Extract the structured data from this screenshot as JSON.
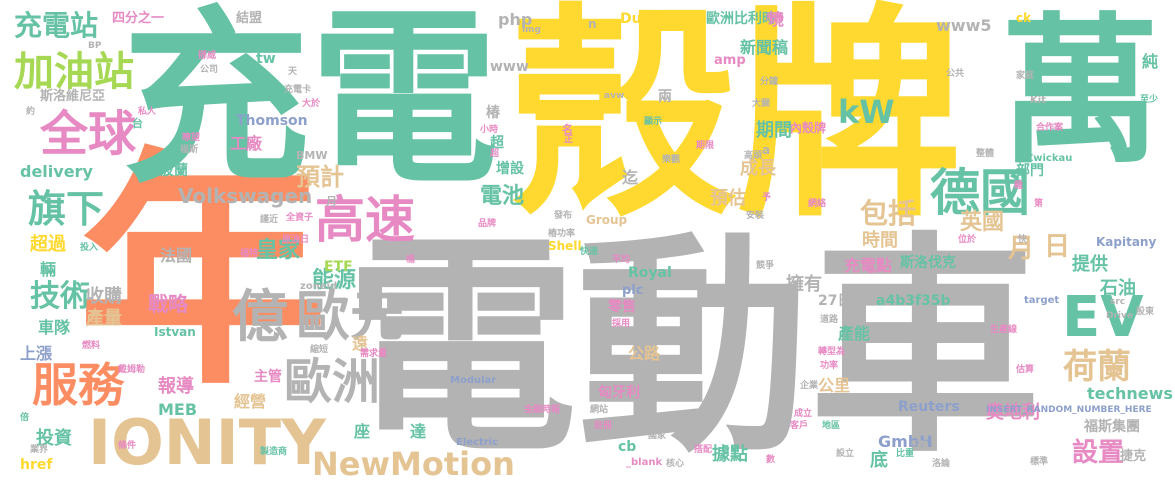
{
  "palette": {
    "green": "#66c2a5",
    "orange": "#fc8d62",
    "blue": "#8da0cb",
    "pink": "#e78ac3",
    "lime": "#a6d854",
    "yellow": "#ffd92f",
    "tan": "#e5c494",
    "gray": "#b3b3b3"
  },
  "words": [
    {
      "t": "年",
      "c": "orange"
    },
    {
      "t": "電動車",
      "c": "gray"
    },
    {
      "t": "充電",
      "c": "green"
    },
    {
      "t": "殼牌",
      "c": "yellow"
    },
    {
      "t": "萬",
      "c": "green"
    },
    {
      "t": "IONITY",
      "c": "tan"
    },
    {
      "t": "服務",
      "c": "orange"
    },
    {
      "t": "全球",
      "c": "pink"
    },
    {
      "t": "加油站",
      "c": "lime"
    },
    {
      "t": "充電站",
      "c": "green"
    },
    {
      "t": "旗下",
      "c": "green"
    },
    {
      "t": "技術",
      "c": "green"
    },
    {
      "t": "億",
      "c": "gray"
    },
    {
      "t": "歐元",
      "c": "gray"
    },
    {
      "t": "歐洲",
      "c": "gray"
    },
    {
      "t": "高速",
      "c": "pink"
    },
    {
      "t": "德國",
      "c": "green"
    },
    {
      "t": "EV",
      "c": "green"
    },
    {
      "t": "荷蘭",
      "c": "tan"
    },
    {
      "t": "NewMotion",
      "c": "tan"
    },
    {
      "t": "kW",
      "c": "green"
    },
    {
      "t": "包括",
      "c": "tan"
    },
    {
      "t": "英國",
      "c": "tan"
    },
    {
      "t": "月",
      "c": "tan"
    },
    {
      "t": "日",
      "c": "tan"
    },
    {
      "t": "設置",
      "c": "pink"
    },
    {
      "t": "預計",
      "c": "tan"
    },
    {
      "t": "電池",
      "c": "green"
    },
    {
      "t": "能源",
      "c": "green"
    },
    {
      "t": "皇家",
      "c": "green"
    },
    {
      "t": "石油",
      "c": "green"
    },
    {
      "t": "提供",
      "c": "green"
    },
    {
      "t": "擁有",
      "c": "gray"
    },
    {
      "t": "戰略",
      "c": "pink"
    },
    {
      "t": "收購",
      "c": "gray"
    },
    {
      "t": "產量",
      "c": "tan"
    },
    {
      "t": "車隊",
      "c": "green"
    },
    {
      "t": "上漲",
      "c": "blue"
    },
    {
      "t": "報導",
      "c": "pink"
    },
    {
      "t": "經營",
      "c": "tan"
    },
    {
      "t": "投資",
      "c": "green"
    },
    {
      "t": "座",
      "c": "green"
    },
    {
      "t": "達",
      "c": "green"
    },
    {
      "t": "奧地利",
      "c": "pink"
    },
    {
      "t": "據點",
      "c": "green"
    },
    {
      "t": "底",
      "c": "green"
    },
    {
      "t": "福斯集團",
      "c": "gray"
    },
    {
      "t": "捷克",
      "c": "gray"
    },
    {
      "t": "technews",
      "c": "green"
    },
    {
      "t": "Reuters",
      "c": "blue"
    },
    {
      "t": "GmbH",
      "c": "blue"
    },
    {
      "t": "公里",
      "c": "tan"
    },
    {
      "t": "公路",
      "c": "tan"
    },
    {
      "t": "產能",
      "c": "green"
    },
    {
      "t": "零售",
      "c": "pink"
    },
    {
      "t": "MEB",
      "c": "green"
    },
    {
      "t": "Volkswagen",
      "c": "gray"
    },
    {
      "t": "ETF",
      "c": "lime"
    },
    {
      "t": "delivery",
      "c": "green"
    },
    {
      "t": "工廠",
      "c": "pink"
    },
    {
      "t": "Thomson",
      "c": "blue"
    },
    {
      "t": "超過",
      "c": "yellow"
    },
    {
      "t": "法國",
      "c": "gray"
    },
    {
      "t": "波蘭",
      "c": "green"
    },
    {
      "t": "期間",
      "c": "green"
    },
    {
      "t": "成長",
      "c": "tan"
    },
    {
      "t": "預估",
      "c": "tan"
    },
    {
      "t": "時間",
      "c": "tan"
    },
    {
      "t": "新聞稿",
      "c": "green"
    },
    {
      "t": "歐洲比利時",
      "c": "green"
    },
    {
      "t": "Dutch",
      "c": "yellow"
    },
    {
      "t": "www5",
      "c": "gray"
    },
    {
      "t": "php",
      "c": "gray"
    },
    {
      "t": "www",
      "c": "gray"
    },
    {
      "t": "椿",
      "c": "gray"
    },
    {
      "t": "充電點",
      "c": "pink"
    },
    {
      "t": "斯洛伐克",
      "c": "green"
    },
    {
      "t": "Kapitany",
      "c": "blue"
    },
    {
      "t": "a4b3f35b",
      "c": "green"
    },
    {
      "t": "27日",
      "c": "gray"
    },
    {
      "t": "Royal",
      "c": "green"
    },
    {
      "t": "plc",
      "c": "blue"
    },
    {
      "t": "Shell",
      "c": "yellow"
    },
    {
      "t": "斯洛維尼亞",
      "c": "gray"
    },
    {
      "t": "四分之一",
      "c": "pink"
    },
    {
      "t": "結盟",
      "c": "gray"
    },
    {
      "t": "tw",
      "c": "green"
    },
    {
      "t": "href",
      "c": "yellow"
    },
    {
      "t": "輛",
      "c": "green"
    },
    {
      "t": "遠",
      "c": "tan"
    },
    {
      "t": "主管",
      "c": "pink"
    },
    {
      "t": "匈牙利",
      "c": "pink"
    },
    {
      "t": "Istvan",
      "c": "green"
    },
    {
      "t": "內殼牌",
      "c": "pink"
    },
    {
      "t": "增設",
      "c": "green"
    },
    {
      "t": "迄",
      "c": "gray"
    },
    {
      "t": "BMW",
      "c": "gray"
    },
    {
      "t": "Group",
      "c": "tan"
    },
    {
      "t": "amp",
      "c": "pink"
    },
    {
      "t": "ck",
      "c": "yellow"
    },
    {
      "t": "境",
      "c": "pink"
    },
    {
      "t": "純",
      "c": "green"
    },
    {
      "t": "部門",
      "c": "green"
    },
    {
      "t": "INSERT_RANDOM_NUMBER_HERE",
      "c": "blue"
    },
    {
      "t": "Modular",
      "c": "blue"
    },
    {
      "t": "Electric",
      "c": "blue"
    },
    {
      "t": "zoneid",
      "c": "gray"
    },
    {
      "t": "target",
      "c": "blue"
    },
    {
      "t": "_blank",
      "c": "pink"
    },
    {
      "t": "Zwickau",
      "c": "green"
    },
    {
      "t": "Kit",
      "c": "gray"
    },
    {
      "t": "Drive",
      "c": "gray"
    },
    {
      "t": "src",
      "c": "gray"
    },
    {
      "t": "cb",
      "c": "green"
    },
    {
      "t": "兩",
      "c": "gray"
    },
    {
      "t": "超",
      "c": "green"
    },
    {
      "t": "月",
      "c": "gray"
    },
    {
      "t": "a",
      "c": "gray"
    },
    {
      "t": "n",
      "c": "gray"
    },
    {
      "t": "img",
      "c": "gray"
    },
    {
      "t": "avw",
      "c": "gray"
    },
    {
      "t": "BP",
      "c": "gray"
    },
    {
      "t": "規格",
      "c": "pink"
    },
    {
      "t": "挪威",
      "c": "pink"
    },
    {
      "t": "公司",
      "c": "gray"
    },
    {
      "t": "天",
      "c": "gray"
    },
    {
      "t": "充電卡",
      "c": "gray"
    },
    {
      "t": "大於",
      "c": "pink"
    },
    {
      "t": "私人",
      "c": "pink"
    },
    {
      "t": "台",
      "c": "green"
    },
    {
      "t": "約",
      "c": "gray"
    },
    {
      "t": "瞭望",
      "c": "pink"
    },
    {
      "t": "福斯",
      "c": "gray"
    },
    {
      "t": "謹近",
      "c": "gray"
    },
    {
      "t": "全資子",
      "c": "pink"
    },
    {
      "t": "投入",
      "c": "green"
    },
    {
      "t": "福特",
      "c": "pink"
    },
    {
      "t": "原油日",
      "c": "pink"
    },
    {
      "t": "桶",
      "c": "pink"
    },
    {
      "t": "燃料",
      "c": "pink"
    },
    {
      "t": "戴姆勒",
      "c": "pink"
    },
    {
      "t": "縮短",
      "c": "gray"
    },
    {
      "t": "需求量",
      "c": "pink"
    },
    {
      "t": "倍",
      "c": "green"
    },
    {
      "t": "業界",
      "c": "gray"
    },
    {
      "t": "條件",
      "c": "pink"
    },
    {
      "t": "製造商",
      "c": "green"
    },
    {
      "t": "金融時報",
      "c": "pink"
    },
    {
      "t": "網站",
      "c": "gray"
    },
    {
      "t": "對手",
      "c": "gray"
    },
    {
      "t": "國家",
      "c": "gray"
    },
    {
      "t": "註冊",
      "c": "pink"
    },
    {
      "t": "核心",
      "c": "gray"
    },
    {
      "t": "搭配",
      "c": "pink"
    },
    {
      "t": "數",
      "c": "pink"
    },
    {
      "t": "比重",
      "c": "green"
    },
    {
      "t": "洛論",
      "c": "gray"
    },
    {
      "t": "標準",
      "c": "gray"
    },
    {
      "t": "千萬",
      "c": "gray"
    },
    {
      "t": "設立",
      "c": "gray"
    },
    {
      "t": "地區",
      "c": "green"
    },
    {
      "t": "統計",
      "c": "gray"
    },
    {
      "t": "成立",
      "c": "pink"
    },
    {
      "t": "客戶",
      "c": "pink"
    },
    {
      "t": "企業",
      "c": "gray"
    },
    {
      "t": "估算",
      "c": "pink"
    },
    {
      "t": "轉型為",
      "c": "pink"
    },
    {
      "t": "功率",
      "c": "pink"
    },
    {
      "t": "生產線",
      "c": "pink"
    },
    {
      "t": "道路",
      "c": "gray"
    },
    {
      "t": "股東",
      "c": "gray"
    },
    {
      "t": "競爭",
      "c": "gray"
    },
    {
      "t": "位於",
      "c": "pink"
    },
    {
      "t": "快",
      "c": "gray"
    },
    {
      "t": "網絡",
      "c": "pink"
    },
    {
      "t": "安裝",
      "c": "gray"
    },
    {
      "t": "予",
      "c": "pink"
    },
    {
      "t": "平均",
      "c": "pink"
    },
    {
      "t": "快速",
      "c": "green"
    },
    {
      "t": "樁功率",
      "c": "gray"
    },
    {
      "t": "發布",
      "c": "gray"
    },
    {
      "t": "品牌",
      "c": "pink"
    },
    {
      "t": "名",
      "c": "pink"
    },
    {
      "t": "顯示",
      "c": "green"
    },
    {
      "t": "小時",
      "c": "pink"
    },
    {
      "t": "樂觀",
      "c": "gray"
    },
    {
      "t": "期限",
      "c": "pink"
    },
    {
      "t": "大關",
      "c": "gray"
    },
    {
      "t": "分鐘",
      "c": "gray"
    },
    {
      "t": "公共",
      "c": "gray"
    },
    {
      "t": "家庭",
      "c": "gray"
    },
    {
      "t": "至少",
      "c": "green"
    },
    {
      "t": "合作案",
      "c": "pink"
    },
    {
      "t": "整體",
      "c": "gray"
    },
    {
      "t": "雞",
      "c": "pink"
    },
    {
      "t": "第",
      "c": "pink"
    },
    {
      "t": "採用",
      "c": "pink"
    },
    {
      "t": "高頭",
      "c": "gray"
    },
    {
      "t": "超",
      "c": "pink"
    },
    {
      "t": "正",
      "c": "pink"
    }
  ]
}
